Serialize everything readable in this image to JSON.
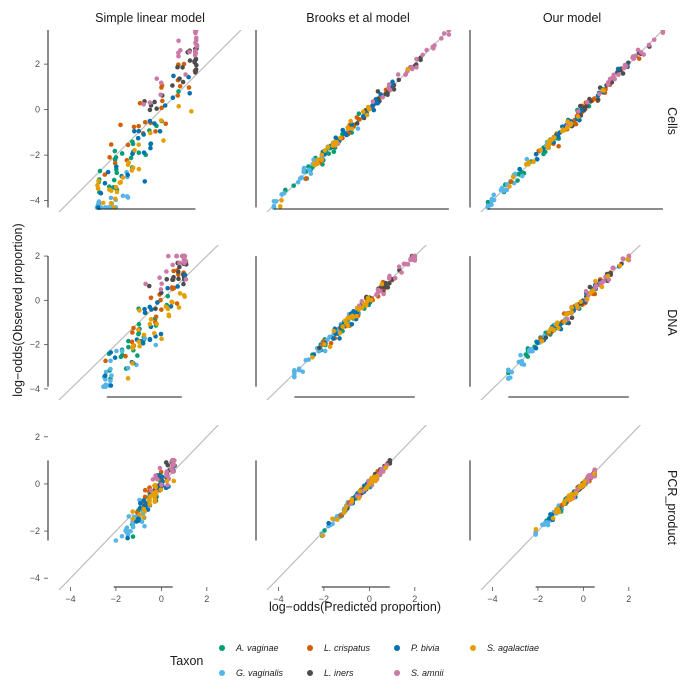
{
  "chart_data": {
    "type": "scatter",
    "description_free": true,
    "column_titles": [
      "Simple linear model",
      "Brooks et al model",
      "Our model"
    ],
    "row_titles": [
      "Cells",
      "DNA",
      "PCR_product"
    ],
    "xlabel": "log-odds(Predicted proportion)",
    "ylabel": "log-odds(Observed proportion)",
    "x_ticks": [
      "-4",
      "-2",
      "0",
      "2"
    ],
    "y_ticks": [
      "-4",
      "-2",
      "0",
      "2"
    ],
    "xlim": [
      -4.9,
      3.9
    ],
    "ylim": [
      -4.5,
      3.5
    ],
    "reference_line": "y = x",
    "rows": [
      {
        "name": "Cells",
        "ylim": [
          -4.5,
          3.5
        ],
        "panels": [
          {
            "x_range": [
              -2.8,
              1.5
            ],
            "y_range": [
              -4.3,
              3.5
            ],
            "y_visible": [
              -4.3,
              3.5
            ]
          },
          {
            "x_range": [
              -4.2,
              3.5
            ],
            "y_range": [
              -4.2,
              3.5
            ],
            "y_visible": [
              -4.3,
              3.5
            ]
          },
          {
            "x_range": [
              -4.2,
              3.5
            ],
            "y_range": [
              -4.2,
              3.5
            ],
            "y_visible": [
              -4.3,
              3.5
            ]
          }
        ]
      },
      {
        "name": "DNA",
        "ylim": [
          -4.5,
          2.5
        ],
        "panels": [
          {
            "x_range": [
              -2.4,
              0.9
            ],
            "y_range": [
              -3.7,
              2.0
            ],
            "y_visible": [
              -3.9,
              2.0
            ]
          },
          {
            "x_range": [
              -3.3,
              2.0
            ],
            "y_range": [
              -3.3,
              2.0
            ],
            "y_visible": [
              -3.9,
              2.0
            ]
          },
          {
            "x_range": [
              -3.3,
              2.0
            ],
            "y_range": [
              -3.3,
              2.0
            ],
            "y_visible": [
              -3.9,
              2.0
            ]
          }
        ]
      },
      {
        "name": "PCR_product",
        "ylim": [
          -4.5,
          2.5
        ],
        "panels": [
          {
            "x_range": [
              -2.1,
              0.5
            ],
            "y_range": [
              -2.4,
              1.0
            ],
            "y_visible": [
              -2.4,
              1.0
            ]
          },
          {
            "x_range": [
              -2.1,
              0.9
            ],
            "y_range": [
              -2.4,
              1.0
            ],
            "y_visible": [
              -2.4,
              1.0
            ]
          },
          {
            "x_range": [
              -2.1,
              0.5
            ],
            "y_range": [
              -2.4,
              1.0
            ],
            "y_visible": [
              -2.4,
              1.0
            ]
          }
        ]
      }
    ],
    "legend": {
      "title": "Taxon",
      "position": "bottom",
      "items": [
        {
          "name": "A. vaginae",
          "color": "#009E73"
        },
        {
          "name": "G. vaginalis",
          "color": "#56B4E9"
        },
        {
          "name": "L. crispatus",
          "color": "#D55E00"
        },
        {
          "name": "L. iners",
          "color": "#4D4D4D"
        },
        {
          "name": "P. bivia",
          "color": "#0072B2"
        },
        {
          "name": "S. amnii",
          "color": "#CC79A7"
        },
        {
          "name": "S. agalactiae",
          "color": "#E69F00"
        }
      ]
    },
    "series_offsets": {
      "simple_row_cells": {
        "A. vaginae": -0.3,
        "G. vaginalis": -1.8,
        "L. crispatus": 0.2,
        "L. iners": 0.6,
        "P. bivia": -0.4,
        "S. amnii": 1.2,
        "S. agalactiae": -0.9
      },
      "simple_row_dna": {
        "A. vaginae": -0.4,
        "G. vaginalis": -1.0,
        "L. crispatus": 0.1,
        "L. iners": 0.3,
        "P. bivia": -0.5,
        "S. amnii": 0.9,
        "S. agalactiae": -0.6
      },
      "simple_row_pcr": {
        "A. vaginae": -0.2,
        "G. vaginalis": -0.3,
        "L. crispatus": 0.1,
        "L. iners": 0.1,
        "P. bivia": -0.1,
        "S. amnii": 0.3,
        "S. agalactiae": -0.1
      }
    }
  }
}
